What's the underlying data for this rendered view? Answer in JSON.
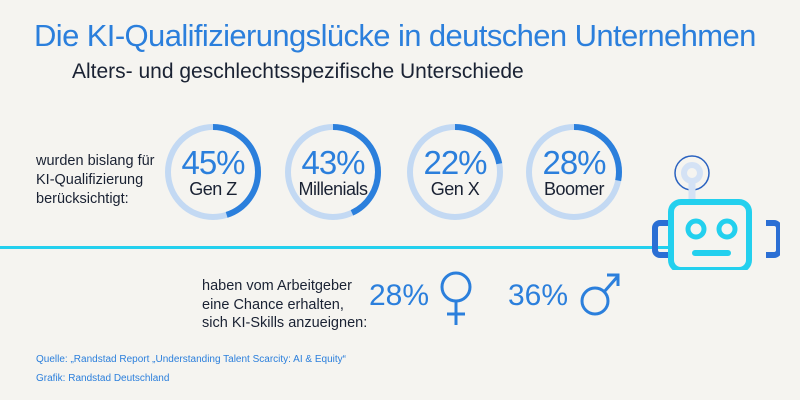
{
  "title": "Die KI-Qualifizierungslücke in deutschen Unternehmen",
  "subtitle": "Alters- und geschlechtsspezifische Unterschiede",
  "chart_data": [
    {
      "type": "donut",
      "label_lines": [
        "wurden bislang für",
        "KI-Qualifizierung",
        "berücksichtigt:"
      ],
      "categories": [
        "Gen Z",
        "Millenials",
        "Gen X",
        "Boomer"
      ],
      "values": [
        45,
        43,
        22,
        28
      ],
      "value_labels": [
        "45%",
        "43%",
        "22%",
        "28%"
      ],
      "unit": "%",
      "colors": {
        "fill": "#2b7fdc",
        "track": "#c3d9f3"
      }
    },
    {
      "type": "table",
      "label_lines": [
        "haben vom Arbeitgeber",
        "eine Chance erhalten,",
        "sich KI-Skills anzueignen:"
      ],
      "categories": [
        "female-symbol",
        "male-symbol"
      ],
      "values": [
        28,
        36
      ],
      "value_labels": [
        "28%",
        "36%"
      ]
    }
  ],
  "icons": [
    "robot-icon",
    "female-symbol-icon",
    "male-symbol-icon"
  ],
  "colors": {
    "accent": "#2b7fdc",
    "cyan": "#23d0ee",
    "text": "#1a2233",
    "background": "#f5f4f0"
  },
  "source": {
    "line1": "Quelle: „Randstad Report „Understanding Talent Scarcity: AI & Equity“",
    "line2": "Grafik: Randstad Deutschland"
  }
}
